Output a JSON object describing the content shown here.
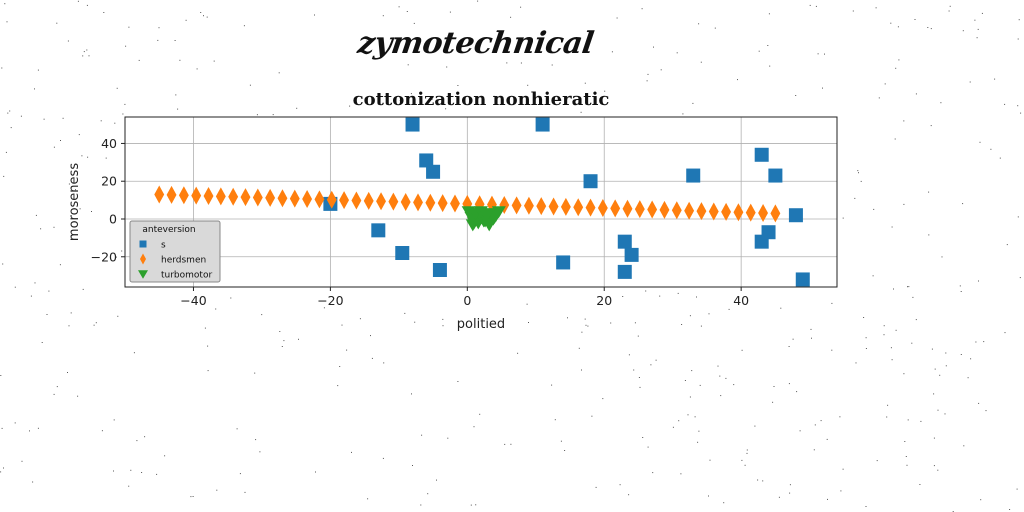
{
  "header": {
    "title": "zymotechnical"
  },
  "chart_data": {
    "type": "scatter",
    "title": "cottonization nonhieratic",
    "xlabel": "politied",
    "ylabel": "moroseness",
    "xlim": [
      -50,
      54
    ],
    "ylim": [
      -36,
      54
    ],
    "xticks": [
      -40,
      -20,
      0,
      20,
      40
    ],
    "yticks": [
      -20,
      0,
      20,
      40
    ],
    "grid": true,
    "legend": {
      "title": "anteversion",
      "placement": "lower-left"
    },
    "series": [
      {
        "name": "s",
        "marker": "square",
        "color": "#1f77b4",
        "x": [
          -20,
          -13,
          -9.5,
          -8,
          -6,
          -5,
          -4,
          11,
          14,
          18,
          23,
          23,
          24,
          33,
          43,
          43,
          44,
          45,
          48,
          49
        ],
        "y": [
          8,
          -6,
          -18,
          50,
          31,
          25,
          -27,
          50,
          -23,
          20,
          -12,
          -28,
          -19,
          23,
          34,
          -12,
          -7,
          23,
          2,
          -32
        ]
      },
      {
        "name": "herdsmen",
        "marker": "diamond",
        "color": "#ff7f0e",
        "x": [
          -45,
          -43.2,
          -41.4,
          -39.6,
          -37.8,
          -36,
          -34.2,
          -32.4,
          -30.6,
          -28.8,
          -27,
          -25.2,
          -23.4,
          -21.6,
          -19.8,
          -18,
          -16.2,
          -14.4,
          -12.6,
          -10.8,
          -9,
          -7.2,
          -5.4,
          -3.6,
          -1.8,
          0,
          1.8,
          3.6,
          5.4,
          7.2,
          9,
          10.8,
          12.6,
          14.4,
          16.2,
          18,
          19.8,
          21.6,
          23.4,
          25.2,
          27,
          28.8,
          30.6,
          32.4,
          34.2,
          36,
          37.8,
          39.6,
          41.4,
          43.2,
          45
        ],
        "y": [
          13,
          12.8,
          12.6,
          12.4,
          12.2,
          12,
          11.8,
          11.6,
          11.4,
          11.2,
          11,
          10.8,
          10.6,
          10.4,
          10.2,
          10,
          9.8,
          9.6,
          9.4,
          9.2,
          9,
          8.8,
          8.6,
          8.4,
          8.2,
          8,
          7.8,
          7.6,
          7.4,
          7.2,
          7,
          6.8,
          6.6,
          6.4,
          6.2,
          6,
          5.8,
          5.6,
          5.4,
          5.2,
          5,
          4.8,
          4.6,
          4.4,
          4.2,
          4,
          3.8,
          3.6,
          3.4,
          3.2,
          3
        ]
      },
      {
        "name": "turbomotor",
        "marker": "triangle-down",
        "color": "#2ca02c",
        "x": [
          0.2,
          0.6,
          1.0,
          1.4,
          1.8,
          2.2,
          2.6,
          3.0,
          3.4,
          3.8,
          4.2,
          4.6,
          0.8,
          1.6,
          2.4,
          3.2,
          4.0,
          1.2,
          2.0,
          2.8
        ],
        "y": [
          4,
          1,
          -2,
          3,
          0,
          2,
          -1,
          3,
          1,
          0,
          2,
          4,
          -3,
          -2,
          -1,
          -3,
          1,
          3,
          4,
          2
        ]
      }
    ]
  }
}
